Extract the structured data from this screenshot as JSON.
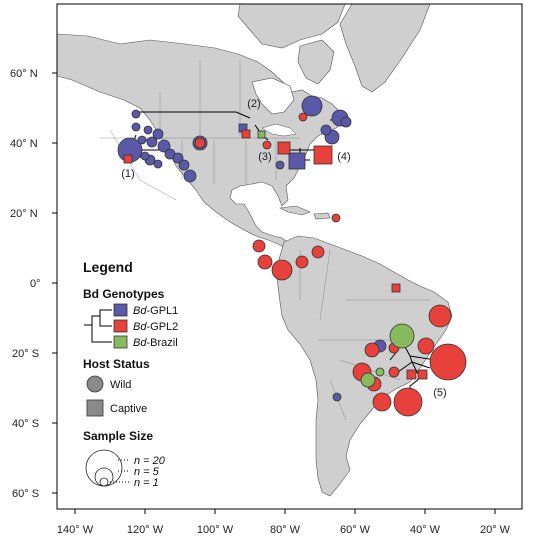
{
  "colors": {
    "gpl1": "#5a58a8",
    "gpl2": "#e8403a",
    "brazil": "#86ba5c",
    "land": "#cfcfcf",
    "water": "#ffffff",
    "frame": "#000000",
    "host_symbol": "#8a8a8a"
  },
  "axes": {
    "y_ticks": [
      "60° N",
      "40° N",
      "20° N",
      "0°",
      "20° S",
      "40° S",
      "60° S"
    ],
    "x_ticks": [
      "140° W",
      "120° W",
      "100° W",
      "80° W",
      "60° W",
      "40° W",
      "20° W"
    ]
  },
  "region_labels": [
    "(1)",
    "(2)",
    "(3)",
    "(4)",
    "(5)"
  ],
  "legend": {
    "title": "Legend",
    "genotypes_heading": "Bd Genotypes",
    "genotypes": [
      {
        "prefix": "Bd",
        "name": "-GPL1",
        "color_key": "gpl1"
      },
      {
        "prefix": "Bd",
        "name": "-GPL2",
        "color_key": "gpl2"
      },
      {
        "prefix": "Bd",
        "name": "-Brazil",
        "color_key": "brazil"
      }
    ],
    "host_heading": "Host Status",
    "hosts": [
      {
        "label": "Wild",
        "shape": "circle"
      },
      {
        "label": "Captive",
        "shape": "square"
      }
    ],
    "sample_heading": "Sample Size",
    "sizes": [
      {
        "label": "n = 20",
        "n": 20
      },
      {
        "label": "n = 5",
        "n": 5
      },
      {
        "label": "n = 1",
        "n": 1
      }
    ]
  }
}
